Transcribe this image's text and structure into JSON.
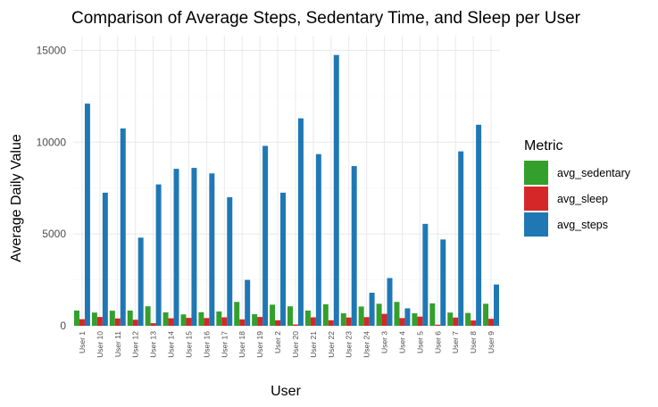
{
  "chart_data": {
    "type": "bar",
    "title": "Comparison of Average Steps, Sedentary Time, and Sleep per User",
    "xlabel": "User",
    "ylabel": "Average Daily Value",
    "ylim": [
      0,
      15800
    ],
    "yticks": [
      0,
      5000,
      10000,
      15000
    ],
    "grid": true,
    "legend": {
      "title": "Metric",
      "position": "right"
    },
    "categories": [
      "User 1",
      "User 10",
      "User 11",
      "User 12",
      "User 13",
      "User 14",
      "User 15",
      "User 16",
      "User 17",
      "User 18",
      "User 19",
      "User 2",
      "User 20",
      "User 21",
      "User 22",
      "User 23",
      "User 24",
      "User 3",
      "User 4",
      "User 5",
      "User 6",
      "User 7",
      "User 8",
      "User 9"
    ],
    "series": [
      {
        "name": "avg_sedentary",
        "color": "#33a02c",
        "values": [
          830,
          720,
          820,
          830,
          1060,
          730,
          620,
          740,
          780,
          1300,
          630,
          1150,
          1060,
          830,
          1170,
          680,
          1050,
          1200,
          1300,
          680,
          1220,
          720,
          700,
          1200
        ]
      },
      {
        "name": "avg_sleep",
        "color": "#d62728",
        "values": [
          360,
          480,
          400,
          330,
          140,
          410,
          430,
          420,
          460,
          350,
          480,
          300,
          70,
          460,
          300,
          450,
          470,
          650,
          420,
          500,
          60,
          450,
          290,
          380
        ]
      },
      {
        "name": "avg_steps",
        "color": "#1f78b4",
        "values": [
          12100,
          7250,
          10750,
          4800,
          7700,
          8550,
          8600,
          8300,
          7000,
          2500,
          9800,
          7250,
          11300,
          9350,
          14750,
          8700,
          1800,
          2600,
          950,
          5550,
          4700,
          9500,
          10950,
          2250
        ]
      }
    ]
  }
}
